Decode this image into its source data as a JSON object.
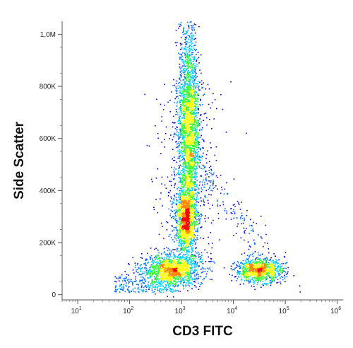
{
  "chart_data": {
    "type": "scatter",
    "subtype": "flow-cytometry density dot plot",
    "title": "",
    "xlabel": "CD3 FITC",
    "ylabel": "Side Scatter",
    "x_scale": "log",
    "xlim": [
      5,
      1300000
    ],
    "ylim": [
      -20000,
      1050000
    ],
    "x_ticks": [
      {
        "value": 10,
        "base": "10",
        "exp": "1"
      },
      {
        "value": 100,
        "base": "10",
        "exp": "2"
      },
      {
        "value": 1000,
        "base": "10",
        "exp": "3"
      },
      {
        "value": 10000,
        "base": "10",
        "exp": "4"
      },
      {
        "value": 100000,
        "base": "10",
        "exp": "5"
      },
      {
        "value": 1000000,
        "base": "10",
        "exp": "6"
      }
    ],
    "y_ticks": [
      {
        "value": 0,
        "label": "0"
      },
      {
        "value": 200000,
        "label": "200K"
      },
      {
        "value": 400000,
        "label": "400K"
      },
      {
        "value": 600000,
        "label": "600K"
      },
      {
        "value": 800000,
        "label": "800K"
      },
      {
        "value": 1000000,
        "label": "1,0M"
      }
    ],
    "populations": [
      {
        "x_center": 650,
        "y_center": 95000,
        "x_spread_decades": 0.28,
        "y_spread": 30000,
        "count": 1400
      },
      {
        "x_center": 1200,
        "y_center": 290000,
        "x_spread_decades": 0.1,
        "y_spread": 60000,
        "count": 1300
      },
      {
        "x_center": 1350,
        "y_center": 650000,
        "x_spread_decades": 0.1,
        "y_spread": 200000,
        "count": 2400
      },
      {
        "x_center": 30000,
        "y_center": 95000,
        "x_spread_decades": 0.22,
        "y_spread": 22000,
        "count": 1000
      }
    ],
    "density_colors": [
      "#0000cc",
      "#0070ff",
      "#00d0ff",
      "#33ff33",
      "#ffff00",
      "#ff8800",
      "#ff0000"
    ],
    "grid": false,
    "legend": "none"
  }
}
